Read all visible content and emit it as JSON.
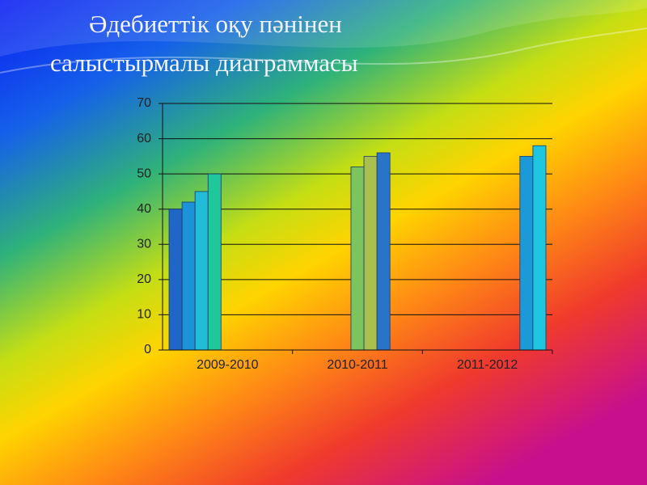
{
  "chart_data": {
    "type": "bar",
    "title": [
      "Әдебиеттік оқу пәнінен",
      "салыстырмалы диаграммасы"
    ],
    "categories": [
      "2009-2010",
      "2010-2011",
      "2011-2012"
    ],
    "series": [
      {
        "color": "#1f66c6",
        "values": [
          40,
          null,
          null
        ]
      },
      {
        "color": "#1c92d8",
        "values": [
          42,
          null,
          null
        ]
      },
      {
        "color": "#20bcd8",
        "values": [
          45,
          null,
          null
        ]
      },
      {
        "color": "#1fc79a",
        "values": [
          50,
          null,
          null
        ]
      },
      {
        "color": "#7cc45e",
        "values": [
          null,
          52,
          null
        ]
      },
      {
        "color": "#a9bf4e",
        "values": [
          null,
          55,
          null
        ]
      },
      {
        "color": "#2a74c8",
        "values": [
          null,
          56,
          null
        ]
      },
      {
        "color": "#1c9ad8",
        "values": [
          null,
          null,
          55
        ]
      },
      {
        "color": "#1fc6e0",
        "values": [
          null,
          null,
          58
        ]
      }
    ],
    "ylim": [
      0,
      70
    ],
    "yticks": [
      0,
      10,
      20,
      30,
      40,
      50,
      60,
      70
    ],
    "grid": true
  }
}
